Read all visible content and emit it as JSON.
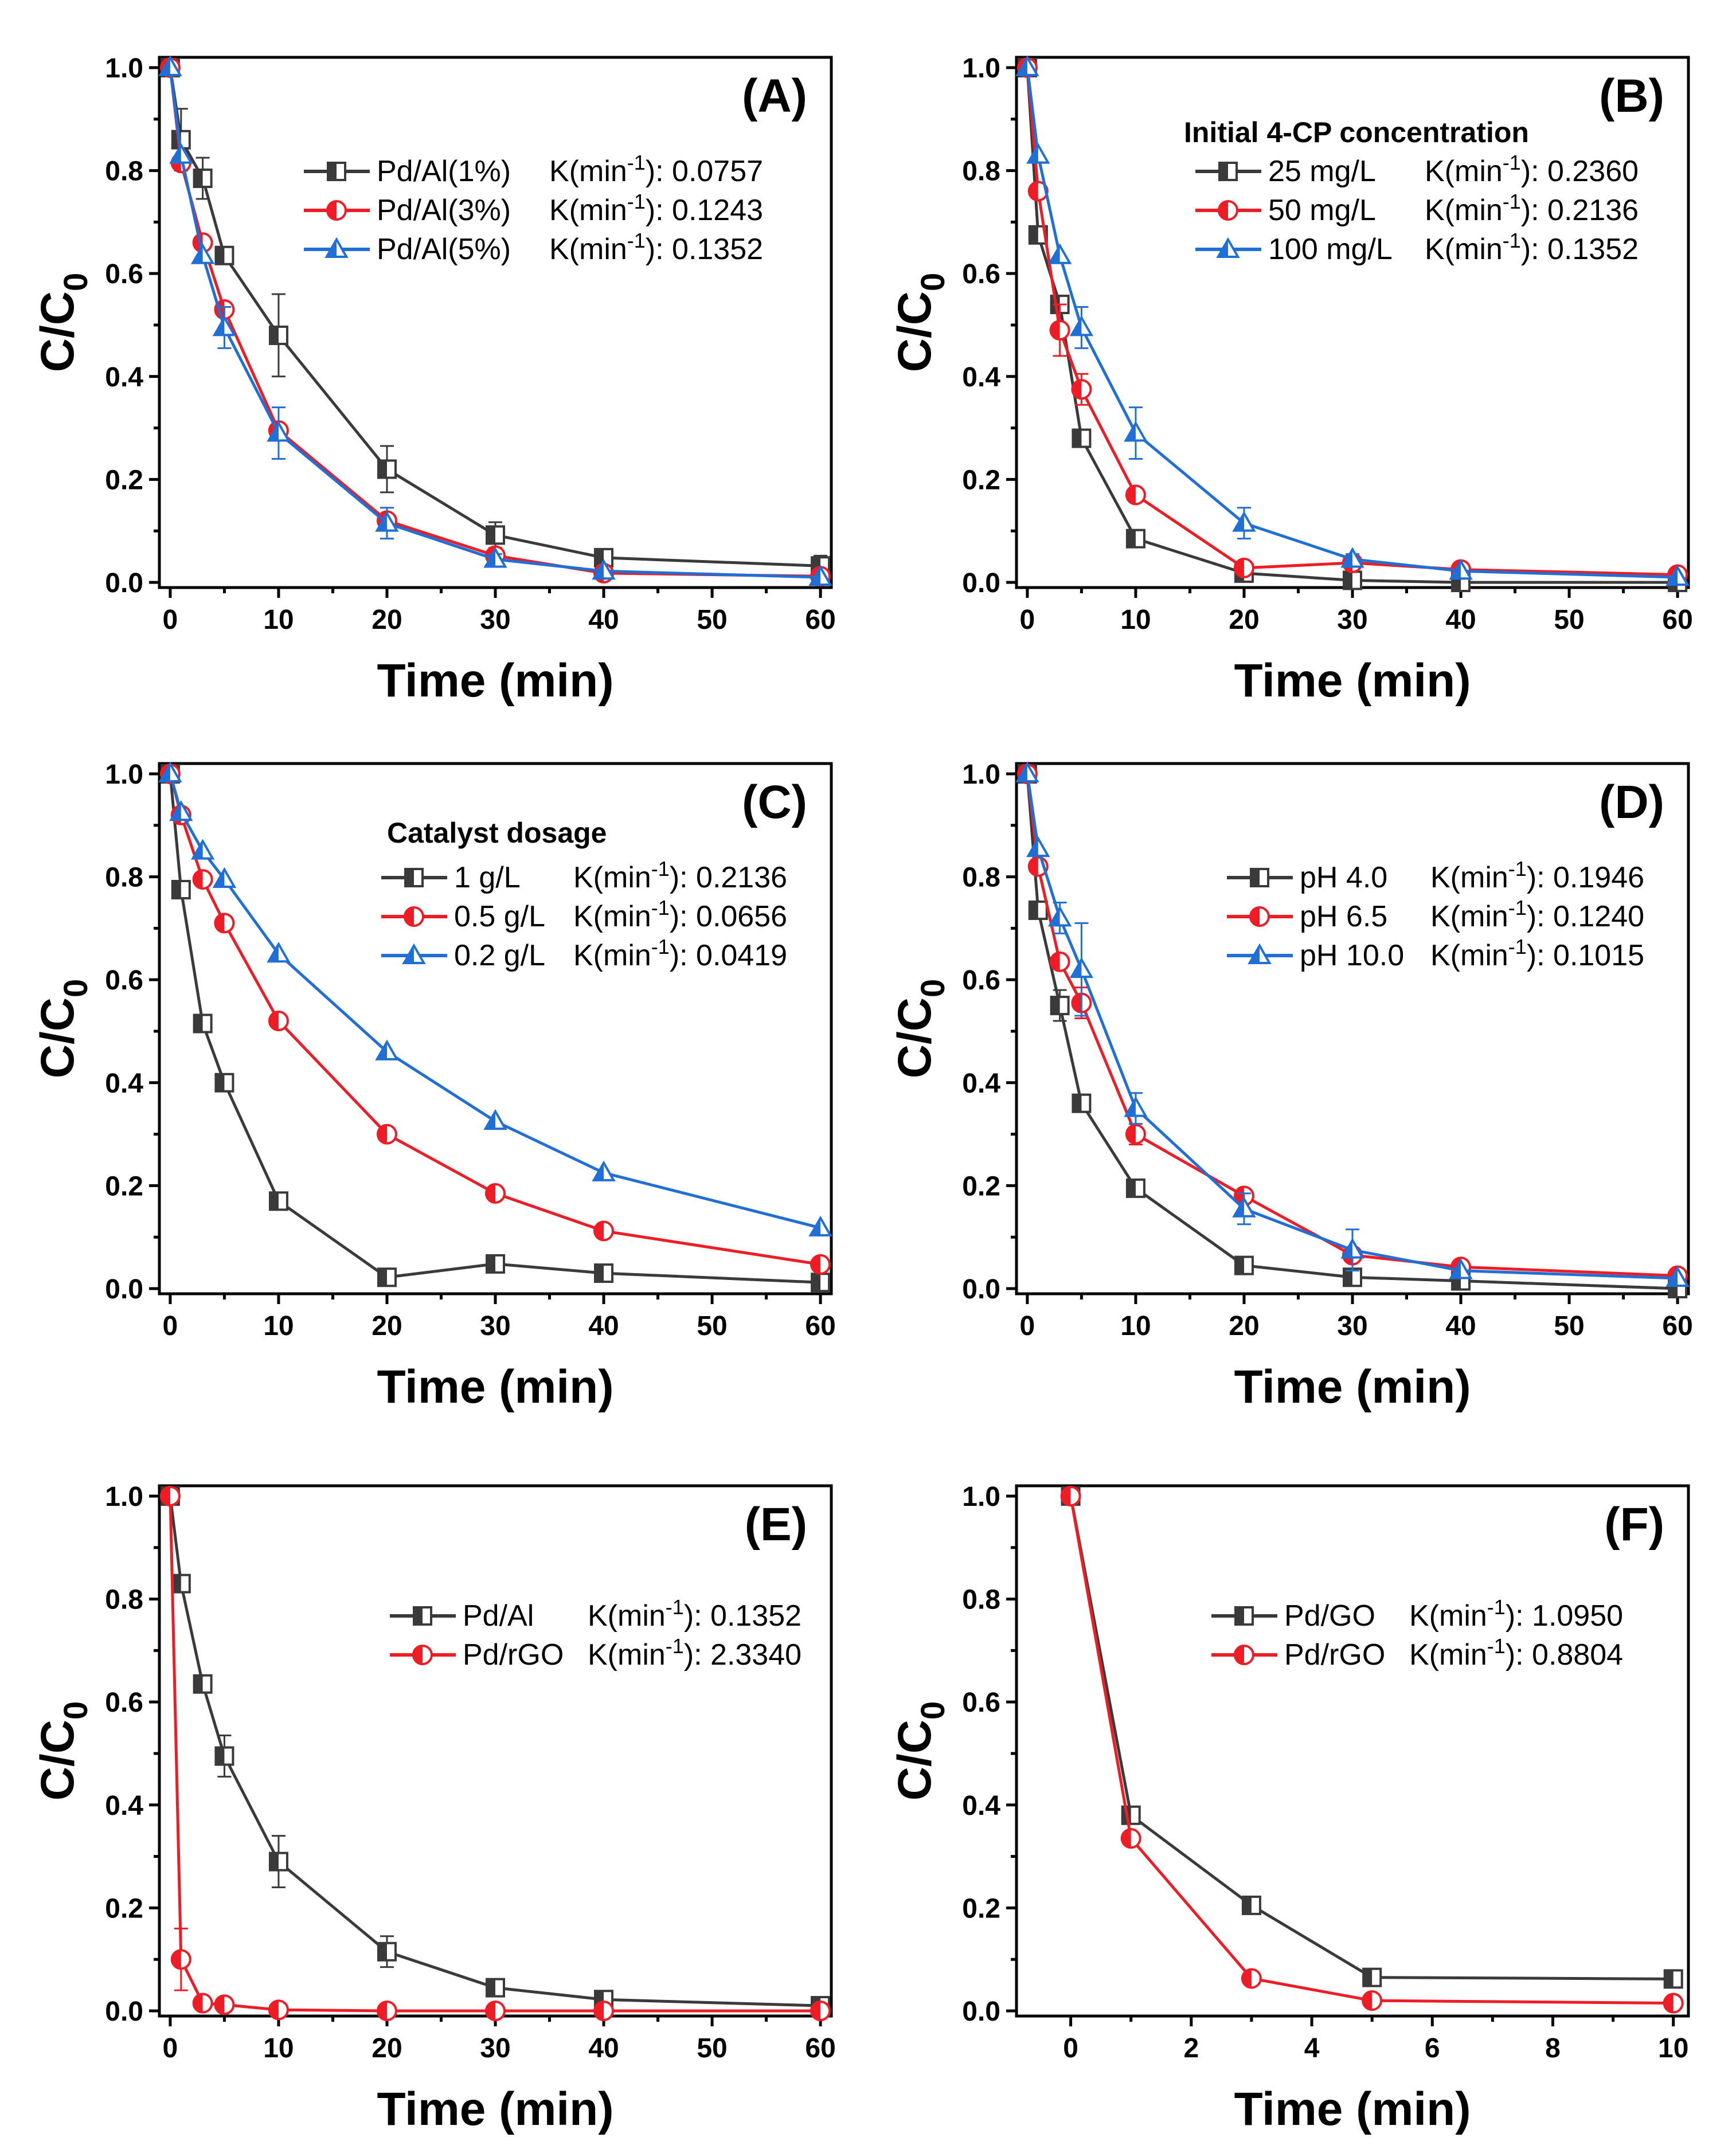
{
  "figure": {
    "colors": {
      "black": "#3a3a3a",
      "red": "#ee1c25",
      "blue": "#1f6fd6"
    }
  },
  "chart_data": [
    {
      "panel": "(A)",
      "type": "line",
      "xlabel": "Time (min)",
      "ylabel": "C/C",
      "ylabel_sub": "0",
      "xlim": [
        -1,
        61
      ],
      "ylim": [
        -0.01,
        1.02
      ],
      "xticks": [
        0,
        10,
        20,
        30,
        40,
        50,
        60
      ],
      "yticks": [
        0.0,
        0.2,
        0.4,
        0.6,
        0.8,
        1.0
      ],
      "legend_title": "",
      "legend_placement": "upper-right",
      "series": [
        {
          "name": "Pd/Al(1%)",
          "k_label": "K(min",
          "k_exp": "-1",
          "k_value": "): 0.0757",
          "color": "#3a3a3a",
          "marker": "square",
          "x": [
            0,
            1,
            3,
            5,
            10,
            20,
            30,
            40,
            60
          ],
          "y": [
            1.0,
            0.86,
            0.785,
            0.635,
            0.48,
            0.22,
            0.092,
            0.048,
            0.032
          ],
          "err": [
            0,
            0.06,
            0.04,
            0,
            0.08,
            0.045,
            0.025,
            0.015,
            0.02
          ]
        },
        {
          "name": "Pd/Al(3%)",
          "k_label": "K(min",
          "k_exp": "-1",
          "k_value": "): 0.1243",
          "color": "#ee1c25",
          "marker": "circle",
          "x": [
            0,
            1,
            3,
            5,
            10,
            20,
            30,
            40,
            60
          ],
          "y": [
            1.0,
            0.815,
            0.66,
            0.53,
            0.295,
            0.12,
            0.052,
            0.018,
            0.012
          ],
          "err": [
            0,
            0,
            0,
            0,
            0,
            0,
            0,
            0,
            0
          ]
        },
        {
          "name": "Pd/Al(5%)",
          "k_label": "K(min",
          "k_exp": "-1",
          "k_value": "): 0.1352",
          "color": "#1f6fd6",
          "marker": "triangle",
          "x": [
            0,
            1,
            3,
            5,
            10,
            20,
            30,
            40,
            60
          ],
          "y": [
            1.0,
            0.83,
            0.635,
            0.495,
            0.29,
            0.115,
            0.045,
            0.022,
            0.01
          ],
          "err": [
            0,
            0,
            0,
            0.04,
            0.05,
            0.03,
            0.01,
            0,
            0
          ]
        }
      ]
    },
    {
      "panel": "(B)",
      "type": "line",
      "xlabel": "Time (min)",
      "ylabel": "C/C",
      "ylabel_sub": "0",
      "xlim": [
        -1,
        61
      ],
      "ylim": [
        -0.01,
        1.02
      ],
      "xticks": [
        0,
        10,
        20,
        30,
        40,
        50,
        60
      ],
      "yticks": [
        0.0,
        0.2,
        0.4,
        0.6,
        0.8,
        1.0
      ],
      "legend_title": "Initial 4-CP concentration",
      "legend_placement": "upper-right",
      "series": [
        {
          "name": "25 mg/L",
          "k_label": "K(min",
          "k_exp": "-1",
          "k_value": "): 0.2360",
          "color": "#3a3a3a",
          "marker": "square",
          "x": [
            0,
            1,
            3,
            5,
            10,
            20,
            30,
            40,
            60
          ],
          "y": [
            1.0,
            0.675,
            0.54,
            0.28,
            0.085,
            0.018,
            0.004,
            0.0,
            0.0
          ],
          "err": [
            0,
            0,
            0,
            0,
            0,
            0,
            0,
            0,
            0
          ]
        },
        {
          "name": "50 mg/L",
          "k_label": "K(min",
          "k_exp": "-1",
          "k_value": "): 0.2136",
          "color": "#ee1c25",
          "marker": "circle",
          "x": [
            0,
            1,
            3,
            5,
            10,
            20,
            30,
            40,
            60
          ],
          "y": [
            1.0,
            0.76,
            0.49,
            0.375,
            0.17,
            0.028,
            0.038,
            0.025,
            0.015
          ],
          "err": [
            0,
            0,
            0.05,
            0.03,
            0,
            0,
            0,
            0,
            0
          ]
        },
        {
          "name": "100 mg/L",
          "k_label": "K(min",
          "k_exp": "-1",
          "k_value": "): 0.1352",
          "color": "#1f6fd6",
          "marker": "triangle",
          "x": [
            0,
            1,
            3,
            5,
            10,
            20,
            30,
            40,
            60
          ],
          "y": [
            1.0,
            0.83,
            0.635,
            0.495,
            0.29,
            0.115,
            0.045,
            0.022,
            0.01
          ],
          "err": [
            0,
            0,
            0,
            0.04,
            0.05,
            0.03,
            0.01,
            0,
            0
          ]
        }
      ]
    },
    {
      "panel": "(C)",
      "type": "line",
      "xlabel": "Time (min)",
      "ylabel": "C/C",
      "ylabel_sub": "0",
      "xlim": [
        -1,
        61
      ],
      "ylim": [
        -0.01,
        1.02
      ],
      "xticks": [
        0,
        10,
        20,
        30,
        40,
        50,
        60
      ],
      "yticks": [
        0.0,
        0.2,
        0.4,
        0.6,
        0.8,
        1.0
      ],
      "legend_title": "Catalyst dosage",
      "legend_placement": "upper-right",
      "series": [
        {
          "name": "1 g/L",
          "k_label": "K(min",
          "k_exp": "-1",
          "k_value": "): 0.2136",
          "color": "#3a3a3a",
          "marker": "square",
          "x": [
            0,
            1,
            3,
            5,
            10,
            20,
            30,
            40,
            60
          ],
          "y": [
            1.0,
            0.775,
            0.515,
            0.4,
            0.17,
            0.022,
            0.048,
            0.03,
            0.012
          ],
          "err": [
            0,
            0,
            0,
            0,
            0,
            0,
            0,
            0,
            0
          ]
        },
        {
          "name": "0.5 g/L",
          "k_label": "K(min",
          "k_exp": "-1",
          "k_value": "): 0.0656",
          "color": "#ee1c25",
          "marker": "circle",
          "x": [
            0,
            1,
            3,
            5,
            10,
            20,
            30,
            40,
            60
          ],
          "y": [
            1.0,
            0.92,
            0.795,
            0.71,
            0.52,
            0.3,
            0.185,
            0.112,
            0.047
          ],
          "err": [
            0,
            0,
            0,
            0,
            0,
            0,
            0,
            0,
            0
          ]
        },
        {
          "name": "0.2 g/L",
          "k_label": "K(min",
          "k_exp": "-1",
          "k_value": "): 0.0419",
          "color": "#1f6fd6",
          "marker": "triangle",
          "x": [
            0,
            1,
            3,
            5,
            10,
            20,
            30,
            40,
            60
          ],
          "y": [
            1.0,
            0.925,
            0.85,
            0.795,
            0.65,
            0.46,
            0.325,
            0.225,
            0.118
          ],
          "err": [
            0,
            0,
            0,
            0,
            0,
            0,
            0,
            0,
            0
          ]
        }
      ]
    },
    {
      "panel": "(D)",
      "type": "line",
      "xlabel": "Time (min)",
      "ylabel": "C/C",
      "ylabel_sub": "0",
      "xlim": [
        -1,
        61
      ],
      "ylim": [
        -0.01,
        1.02
      ],
      "xticks": [
        0,
        10,
        20,
        30,
        40,
        50,
        60
      ],
      "yticks": [
        0.0,
        0.2,
        0.4,
        0.6,
        0.8,
        1.0
      ],
      "legend_title": "",
      "legend_placement": "upper-right",
      "series": [
        {
          "name": "pH 4.0",
          "k_label": "K(min",
          "k_exp": "-1",
          "k_value": "): 0.1946",
          "color": "#3a3a3a",
          "marker": "square",
          "x": [
            0,
            1,
            3,
            5,
            10,
            20,
            30,
            40,
            60
          ],
          "y": [
            1.0,
            0.735,
            0.55,
            0.36,
            0.195,
            0.045,
            0.022,
            0.015,
            0.0
          ],
          "err": [
            0,
            0,
            0.03,
            0,
            0,
            0,
            0,
            0,
            0
          ]
        },
        {
          "name": "pH 6.5",
          "k_label": "K(min",
          "k_exp": "-1",
          "k_value": "): 0.1240",
          "color": "#ee1c25",
          "marker": "circle",
          "x": [
            0,
            1,
            3,
            5,
            10,
            20,
            30,
            40,
            60
          ],
          "y": [
            1.0,
            0.82,
            0.635,
            0.555,
            0.3,
            0.18,
            0.065,
            0.042,
            0.025
          ],
          "err": [
            0,
            0,
            0,
            0.03,
            0.02,
            0,
            0,
            0,
            0
          ]
        },
        {
          "name": "pH 10.0",
          "k_label": "K(min",
          "k_exp": "-1",
          "k_value": "): 0.1015",
          "color": "#1f6fd6",
          "marker": "triangle",
          "x": [
            0,
            1,
            3,
            5,
            10,
            20,
            30,
            40,
            60
          ],
          "y": [
            1.0,
            0.855,
            0.72,
            0.62,
            0.35,
            0.155,
            0.075,
            0.035,
            0.02
          ],
          "err": [
            0,
            0,
            0.03,
            0.09,
            0.03,
            0.03,
            0.04,
            0,
            0
          ]
        }
      ]
    },
    {
      "panel": "(E)",
      "type": "line",
      "xlabel": "Time (min)",
      "ylabel": "C/C",
      "ylabel_sub": "0",
      "xlim": [
        -1,
        61
      ],
      "ylim": [
        -0.01,
        1.02
      ],
      "xticks": [
        0,
        10,
        20,
        30,
        40,
        50,
        60
      ],
      "yticks": [
        0.0,
        0.2,
        0.4,
        0.6,
        0.8,
        1.0
      ],
      "legend_title": "",
      "legend_placement": "right",
      "series": [
        {
          "name": "Pd/Al",
          "k_label": "K(min",
          "k_exp": "-1",
          "k_value": "): 0.1352",
          "color": "#3a3a3a",
          "marker": "square",
          "x": [
            0,
            1,
            3,
            5,
            10,
            20,
            30,
            40,
            60
          ],
          "y": [
            1.0,
            0.83,
            0.635,
            0.495,
            0.29,
            0.115,
            0.045,
            0.022,
            0.01
          ],
          "err": [
            0,
            0,
            0,
            0.04,
            0.05,
            0.03,
            0.01,
            0,
            0
          ]
        },
        {
          "name": "Pd/rGO",
          "k_label": "K(min",
          "k_exp": "-1",
          "k_value": "): 2.3340",
          "color": "#ee1c25",
          "marker": "circle",
          "x": [
            0,
            1,
            3,
            5,
            10,
            20,
            30,
            40,
            60
          ],
          "y": [
            1.0,
            0.1,
            0.015,
            0.012,
            0.002,
            0.0,
            0.0,
            0.0,
            0.0
          ],
          "err": [
            0,
            0.06,
            0,
            0,
            0,
            0,
            0,
            0,
            0
          ]
        }
      ]
    },
    {
      "panel": "(F)",
      "type": "line",
      "xlabel": "Time (min)",
      "ylabel": "C/C",
      "ylabel_sub": "0",
      "xlim": [
        -0.9,
        10.25
      ],
      "ylim": [
        -0.01,
        1.02
      ],
      "xticks": [
        0,
        2,
        4,
        6,
        8,
        10
      ],
      "yticks": [
        0.0,
        0.2,
        0.4,
        0.6,
        0.8,
        1.0
      ],
      "legend_title": "",
      "legend_placement": "right",
      "series": [
        {
          "name": "Pd/GO",
          "k_label": "K(min",
          "k_exp": "-1",
          "k_value": "): 1.0950",
          "color": "#3a3a3a",
          "marker": "square",
          "x": [
            0,
            1,
            3,
            5,
            10
          ],
          "y": [
            1.0,
            0.38,
            0.205,
            0.065,
            0.062
          ],
          "err": [
            0,
            0,
            0,
            0,
            0
          ]
        },
        {
          "name": "Pd/rGO",
          "k_label": "K(min",
          "k_exp": "-1",
          "k_value": "): 0.8804",
          "color": "#ee1c25",
          "marker": "circle",
          "x": [
            0,
            1,
            3,
            5,
            10
          ],
          "y": [
            1.0,
            0.335,
            0.063,
            0.02,
            0.015
          ],
          "err": [
            0,
            0,
            0,
            0,
            0
          ]
        }
      ]
    }
  ]
}
